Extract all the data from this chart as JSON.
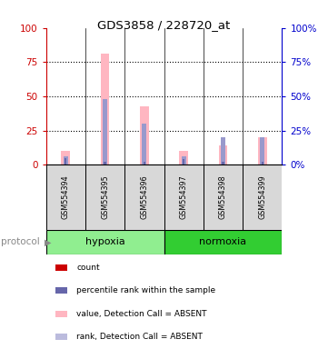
{
  "title": "GDS3858 / 228720_at",
  "samples": [
    "GSM554394",
    "GSM554395",
    "GSM554396",
    "GSM554397",
    "GSM554398",
    "GSM554399"
  ],
  "protocol_groups": [
    {
      "label": "hypoxia",
      "indices": [
        0,
        1,
        2
      ],
      "color": "#90EE90"
    },
    {
      "label": "normoxia",
      "indices": [
        3,
        4,
        5
      ],
      "color": "#32CD32"
    }
  ],
  "value_bars": [
    10,
    81,
    43,
    10,
    14,
    20
  ],
  "rank_bars": [
    6,
    48,
    30,
    6,
    20,
    20
  ],
  "small_red_bars": [
    3,
    2,
    2,
    2,
    2,
    2
  ],
  "small_blue_bars": [
    5,
    2,
    2,
    4,
    2,
    2
  ],
  "ylim": [
    0,
    100
  ],
  "left_yticks": [
    0,
    25,
    50,
    75,
    100
  ],
  "right_yticks": [
    0,
    25,
    50,
    75,
    100
  ],
  "left_ycolor": "#cc0000",
  "right_ycolor": "#0000cc",
  "value_bar_color": "#FFB6C1",
  "rank_bar_color": "#9999CC",
  "small_red_color": "#CC0000",
  "small_blue_color": "#6666AA",
  "sample_box_color": "#d8d8d8",
  "legend_items": [
    {
      "color": "#CC0000",
      "label": "count"
    },
    {
      "color": "#6666AA",
      "label": "percentile rank within the sample"
    },
    {
      "color": "#FFB6C1",
      "label": "value, Detection Call = ABSENT"
    },
    {
      "color": "#BBBBDD",
      "label": "rank, Detection Call = ABSENT"
    }
  ],
  "protocol_label": "protocol"
}
